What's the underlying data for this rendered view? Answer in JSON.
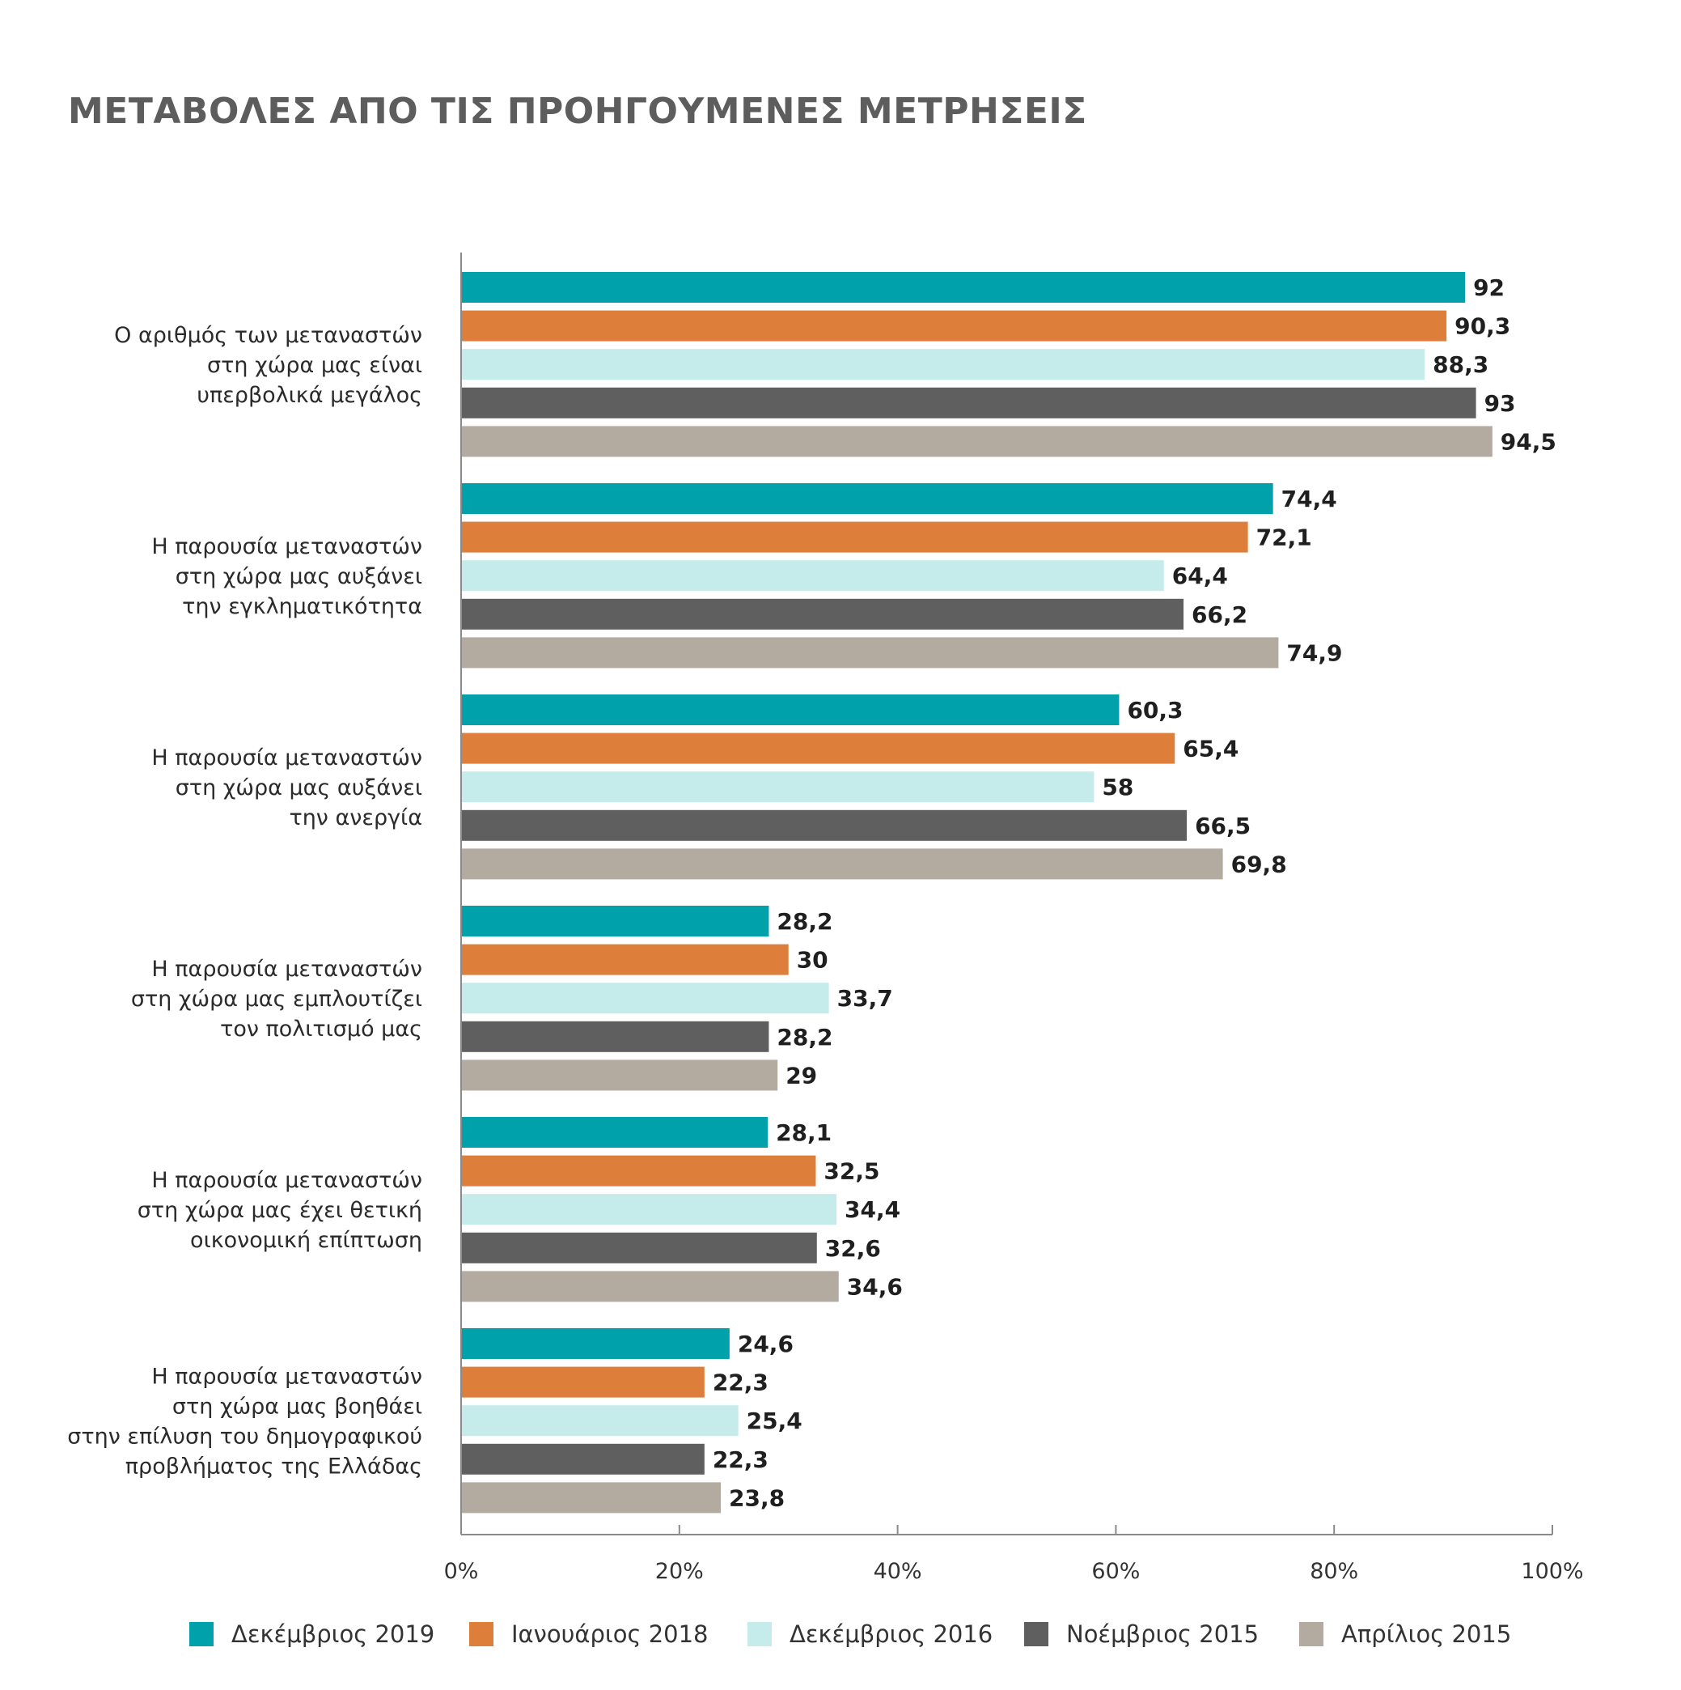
{
  "chart_data": {
    "type": "bar",
    "orientation": "horizontal",
    "title": "ΜΕΤΑΒΟΛΕΣ ΑΠΟ ΤΙΣ ΠΡΟΗΓΟΥΜΕΝΕΣ ΜΕΤΡΗΣΕΙΣ",
    "categories": [
      [
        "Ο αριθμός των μεταναστών",
        "στη χώρα μας είναι",
        "υπερβολικά μεγάλος"
      ],
      [
        "Η παρουσία μεταναστών",
        "στη χώρα μας  αυξάνει",
        "την εγκληματικότητα"
      ],
      [
        "Η παρουσία μεταναστών",
        "στη χώρα μας αυξάνει",
        "την ανεργία"
      ],
      [
        "Η παρουσία μεταναστών",
        "στη χώρα μας εμπλουτίζει",
        "τον πολιτισμό μας"
      ],
      [
        "Η παρουσία μεταναστών",
        "στη χώρα μας έχει θετική",
        "οικονομική επίπτωση"
      ],
      [
        "Η παρουσία μεταναστών",
        "στη χώρα μας βοηθάει",
        "στην επίλυση του δημογραφικού",
        "προβλήματος της Ελλάδας"
      ]
    ],
    "series": [
      {
        "name": "Δεκέμβριος 2019",
        "color": "#00a1ab",
        "values": [
          92,
          74.4,
          60.3,
          28.2,
          28.1,
          24.6
        ],
        "labels": [
          "92",
          "74,4",
          "60,3",
          "28,2",
          "28,1",
          "24,6"
        ]
      },
      {
        "name": "Ιανουάριος 2018",
        "color": "#dd7e3a",
        "values": [
          90.3,
          72.1,
          65.4,
          30,
          32.5,
          22.3
        ],
        "labels": [
          "90,3",
          "72,1",
          "65,4",
          "30",
          "32,5",
          "22,3"
        ]
      },
      {
        "name": "Δεκέμβριος 2016",
        "color": "#c5ebeb",
        "values": [
          88.3,
          64.4,
          58,
          33.7,
          34.4,
          25.4
        ],
        "labels": [
          "88,3",
          "64,4",
          "58",
          "33,7",
          "34,4",
          "25,4"
        ]
      },
      {
        "name": "Νοέμβριος 2015",
        "color": "#5f5f5f",
        "values": [
          93,
          66.2,
          66.5,
          28.2,
          32.6,
          22.3
        ],
        "labels": [
          "93",
          "66,2",
          "66,5",
          "28,2",
          "32,6",
          "22,3"
        ]
      },
      {
        "name": "Απρίλιος 2015",
        "color": "#b3aaa0",
        "values": [
          94.5,
          74.9,
          69.8,
          29,
          34.6,
          23.8
        ],
        "labels": [
          "94,5",
          "74,9",
          "69,8",
          "29",
          "34,6",
          "23,8"
        ]
      }
    ],
    "xlim": [
      0,
      100
    ],
    "xticks": [
      "0%",
      "20%",
      "40%",
      "60%",
      "80%",
      "100%"
    ],
    "grid": false,
    "legend_position": "bottom"
  }
}
